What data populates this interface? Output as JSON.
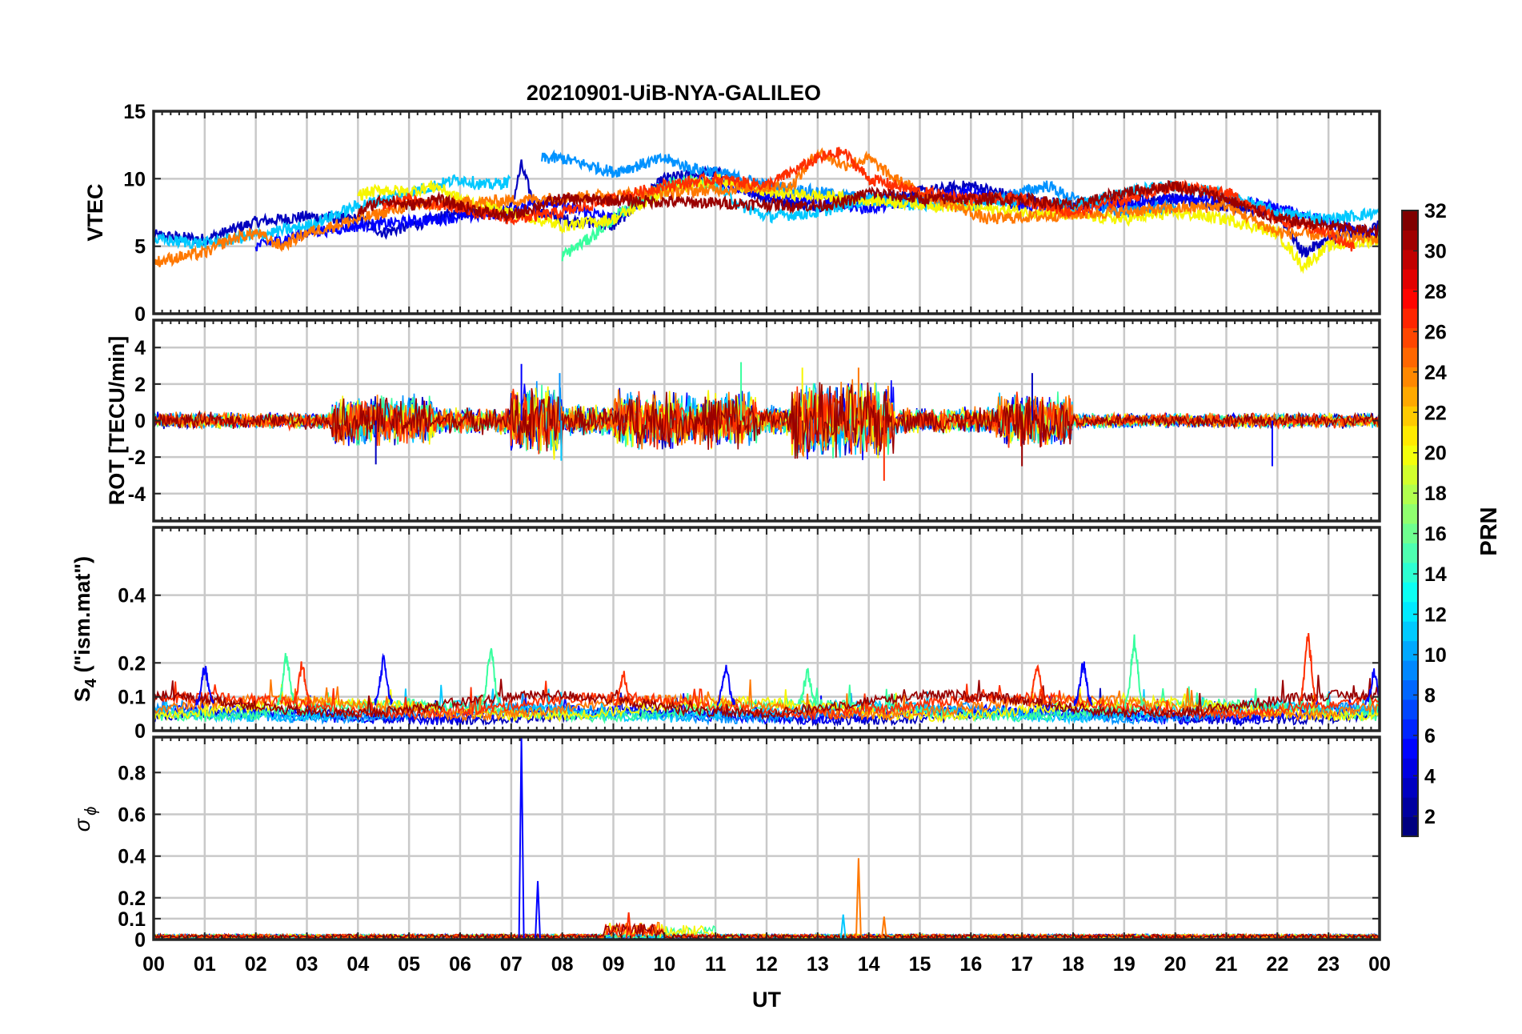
{
  "chart_data": {
    "type": "line",
    "title": "20210901-UiB-NYA-GALILEO",
    "xlabel": "UT",
    "x_tick_labels": [
      "00",
      "01",
      "02",
      "03",
      "04",
      "05",
      "06",
      "07",
      "08",
      "09",
      "10",
      "11",
      "12",
      "13",
      "14",
      "15",
      "16",
      "17",
      "18",
      "19",
      "20",
      "21",
      "22",
      "23",
      "00"
    ],
    "xlim": [
      0,
      24
    ],
    "grid": true,
    "colorbar": {
      "label": "PRN",
      "range": [
        1,
        32
      ],
      "tick_labels": [
        "2",
        "4",
        "6",
        "8",
        "10",
        "12",
        "14",
        "16",
        "18",
        "20",
        "22",
        "24",
        "26",
        "28",
        "30",
        "32"
      ],
      "colormap": "jet"
    },
    "panels": [
      {
        "id": "vtec",
        "ylabel": "VTEC",
        "ylim": [
          0,
          15
        ],
        "y_ticks": [
          0,
          5,
          10,
          15
        ],
        "y_tick_labels": [
          "0",
          "5",
          "10",
          "15"
        ],
        "series": [
          {
            "prn": 2,
            "color": "#0000bf",
            "x": [
              0,
              1,
              2,
              3,
              4,
              4.5,
              5,
              6,
              7,
              7.2,
              7.5,
              8,
              9,
              10,
              11,
              12,
              13,
              14,
              15,
              16,
              17,
              18,
              19,
              20,
              21,
              22,
              22.5,
              23,
              24
            ],
            "y": [
              5.8,
              5.5,
              6.8,
              7.2,
              7.0,
              6.0,
              6.5,
              7.5,
              7.8,
              11.0,
              7.5,
              7.0,
              6.5,
              10.0,
              10.5,
              8.5,
              8.0,
              8.5,
              9.0,
              9.5,
              8.5,
              8.0,
              8.5,
              8.5,
              8.0,
              7.5,
              4.5,
              5.5,
              6.5
            ]
          },
          {
            "prn": 4,
            "color": "#0000ff",
            "x": [
              2,
              3,
              4,
              5,
              6,
              7,
              7.5,
              8,
              9,
              10,
              11,
              12,
              13,
              14,
              15,
              16,
              17,
              18,
              19,
              20,
              21,
              22,
              23,
              24
            ],
            "y": [
              5.0,
              6.0,
              6.5,
              6.8,
              7.2,
              7.5,
              8.5,
              8.0,
              7.0,
              9.5,
              9.8,
              8.8,
              8.5,
              7.8,
              8.5,
              9.0,
              8.0,
              7.8,
              8.0,
              8.5,
              8.5,
              7.8,
              6.8,
              5.5
            ]
          },
          {
            "prn": 10,
            "color": "#0092ff",
            "x": [
              7.6,
              8,
              9,
              9.5,
              10,
              10.5,
              11,
              12,
              13,
              14,
              15,
              16,
              17,
              17.5,
              18,
              19,
              20
            ],
            "y": [
              11.5,
              11.5,
              10.5,
              11.0,
              11.5,
              10.8,
              10.5,
              9.5,
              9.0,
              8.5,
              8.5,
              8.0,
              9.0,
              9.5,
              8.5,
              7.5,
              8.0
            ]
          },
          {
            "prn": 12,
            "color": "#00c8ff",
            "x": [
              0,
              1,
              2,
              3,
              4,
              5,
              5.5,
              6,
              6.5,
              7,
              8,
              9,
              10,
              11,
              11.5,
              12,
              13,
              14,
              15,
              16,
              17,
              18,
              19,
              20,
              21,
              22,
              23,
              24
            ],
            "y": [
              5.5,
              5.2,
              5.8,
              6.5,
              8.0,
              9.0,
              9.5,
              10.0,
              9.5,
              9.8,
              null,
              null,
              null,
              9.5,
              8.0,
              7.2,
              7.5,
              8.5,
              8.0,
              8.2,
              8.5,
              8.0,
              9.0,
              9.5,
              8.8,
              7.5,
              7.0,
              7.5
            ]
          },
          {
            "prn": 16,
            "color": "#38ff9e",
            "x": [
              8,
              8.5,
              9,
              9.5,
              10,
              10.5,
              11
            ],
            "y": [
              4.3,
              5.5,
              7.0,
              8.5,
              9.5,
              9.8,
              9.5
            ]
          },
          {
            "prn": 20,
            "color": "#f6f600",
            "x": [
              4,
              4.5,
              5,
              5.5,
              6,
              8,
              9,
              10,
              10.5,
              11,
              12,
              19,
              20,
              21,
              22,
              22.5,
              23,
              24
            ],
            "y": [
              8.8,
              9.2,
              9.0,
              9.5,
              8.5,
              6.5,
              7.0,
              9.0,
              9.5,
              10.0,
              9.0,
              7.0,
              7.5,
              7.0,
              6.0,
              3.5,
              5.0,
              5.5
            ]
          },
          {
            "prn": 24,
            "color": "#ff7800",
            "x": [
              0,
              0.5,
              1,
              1.5,
              2,
              2.5,
              3,
              3.5,
              4,
              4.5,
              5,
              12.5,
              13,
              13.5,
              14,
              14.5,
              15,
              16,
              16.3,
              21,
              22,
              23,
              24
            ],
            "y": [
              3.8,
              4.2,
              4.5,
              5.5,
              6.0,
              5.0,
              6.0,
              6.5,
              7.0,
              7.5,
              8.0,
              9.5,
              12.0,
              11.0,
              11.5,
              10.0,
              9.0,
              7.5,
              7.0,
              8.0,
              6.0,
              5.8,
              5.5
            ]
          },
          {
            "prn": 28,
            "color": "#ff2e00",
            "x": [
              4.5,
              5,
              5.5,
              6,
              7,
              8,
              9,
              10,
              11,
              12,
              12.5,
              13,
              13.5,
              14,
              15,
              16,
              17,
              18,
              19,
              20,
              21,
              22,
              22.5,
              23,
              23.5
            ],
            "y": [
              8.0,
              8.5,
              8.0,
              7.8,
              7.0,
              7.5,
              8.5,
              9.5,
              10.0,
              9.5,
              10.5,
              11.5,
              12.0,
              10.0,
              9.0,
              8.5,
              8.5,
              7.5,
              8.5,
              9.5,
              9.0,
              7.0,
              6.5,
              6.0,
              4.8
            ]
          },
          {
            "prn": 31,
            "color": "#9a0000",
            "x": [
              4,
              4.5,
              5,
              5.5,
              6,
              6.5,
              7,
              7.5,
              8,
              13,
              13.5,
              14,
              15,
              16,
              17,
              18,
              19,
              20,
              21,
              22,
              23,
              24
            ],
            "y": [
              7.5,
              8.5,
              8.0,
              8.5,
              8.0,
              7.5,
              7.2,
              8.0,
              8.5,
              8.0,
              8.2,
              9.0,
              8.5,
              8.5,
              8.5,
              8.0,
              9.0,
              9.5,
              8.5,
              7.0,
              6.5,
              6.0
            ]
          }
        ]
      },
      {
        "id": "rot",
        "ylabel": "ROT [TECU/min]",
        "ylim": [
          -5.5,
          5.5
        ],
        "y_ticks": [
          -4,
          -2,
          0,
          2,
          4
        ],
        "y_tick_labels": [
          "-4",
          "-2",
          "0",
          "2",
          "4"
        ],
        "activity": [
          {
            "start": 0,
            "end": 3.5,
            "amp": 0.5
          },
          {
            "start": 3.5,
            "end": 5.5,
            "amp": 1.5
          },
          {
            "start": 5.5,
            "end": 7,
            "amp": 0.8
          },
          {
            "start": 7,
            "end": 8,
            "amp": 2.2
          },
          {
            "start": 8,
            "end": 9,
            "amp": 0.9
          },
          {
            "start": 9,
            "end": 11.8,
            "amp": 1.8
          },
          {
            "start": 11.8,
            "end": 12.5,
            "amp": 0.9
          },
          {
            "start": 12.5,
            "end": 14.5,
            "amp": 2.3
          },
          {
            "start": 14.5,
            "end": 16.5,
            "amp": 0.8
          },
          {
            "start": 16.5,
            "end": 18,
            "amp": 1.6
          },
          {
            "start": 18,
            "end": 24,
            "amp": 0.45
          }
        ],
        "spikes": [
          {
            "x": 4.35,
            "y": -2.4
          },
          {
            "x": 7.2,
            "y": 3.1
          },
          {
            "x": 7.95,
            "y": 2.6
          },
          {
            "x": 7.98,
            "y": -2.2
          },
          {
            "x": 11.5,
            "y": 3.2
          },
          {
            "x": 12.7,
            "y": 2.9
          },
          {
            "x": 13.8,
            "y": 2.9
          },
          {
            "x": 14.3,
            "y": -3.3
          },
          {
            "x": 17.0,
            "y": -2.5
          },
          {
            "x": 17.2,
            "y": 2.6
          },
          {
            "x": 21.9,
            "y": -2.5
          }
        ]
      },
      {
        "id": "s4",
        "ylabel": "S4 (\"ism.mat\")",
        "ylim": [
          0,
          0.6
        ],
        "y_ticks": [
          0,
          0.1,
          0.2,
          0.4
        ],
        "y_tick_labels": [
          "0",
          "0.1",
          "0.2",
          "0.4"
        ],
        "baseline": [
          0.04,
          0.09
        ],
        "peaks": [
          {
            "x": 1.0,
            "y": 0.19
          },
          {
            "x": 2.6,
            "y": 0.23
          },
          {
            "x": 2.9,
            "y": 0.21
          },
          {
            "x": 4.5,
            "y": 0.22
          },
          {
            "x": 6.6,
            "y": 0.26
          },
          {
            "x": 9.2,
            "y": 0.18
          },
          {
            "x": 11.2,
            "y": 0.2
          },
          {
            "x": 12.8,
            "y": 0.18
          },
          {
            "x": 17.3,
            "y": 0.21
          },
          {
            "x": 18.2,
            "y": 0.21
          },
          {
            "x": 19.2,
            "y": 0.28
          },
          {
            "x": 22.6,
            "y": 0.3
          },
          {
            "x": 23.9,
            "y": 0.18
          }
        ]
      },
      {
        "id": "sigma_phi",
        "ylabel": "σ ϕ",
        "ylim": [
          0,
          0.97
        ],
        "y_ticks": [
          0,
          0.1,
          0.2,
          0.4,
          0.6,
          0.8
        ],
        "y_tick_labels": [
          "0",
          "0.1",
          "0.2",
          "0.4",
          "0.6",
          "0.8"
        ],
        "baseline": [
          0.0,
          0.04
        ],
        "spikes": [
          {
            "x": 7.2,
            "y": 0.97
          },
          {
            "x": 7.52,
            "y": 0.28
          },
          {
            "x": 9.3,
            "y": 0.13
          },
          {
            "x": 13.5,
            "y": 0.12
          },
          {
            "x": 13.8,
            "y": 0.39
          },
          {
            "x": 14.3,
            "y": 0.11
          }
        ]
      }
    ]
  }
}
